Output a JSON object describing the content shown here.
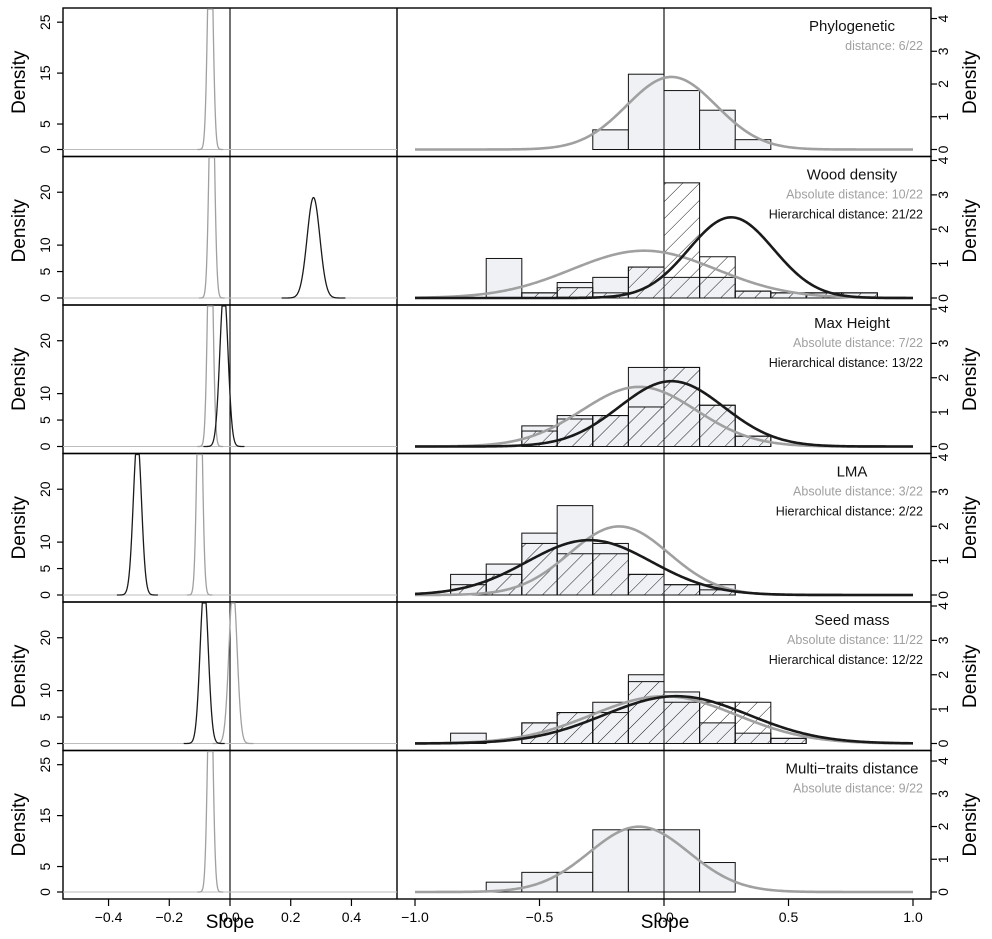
{
  "figure": {
    "left_xlabel": "Slope",
    "right_xlabel": "Slope",
    "ylabel_left": "Density",
    "ylabel_right": "Density"
  },
  "colors": {
    "absolute": "#a0a0a0",
    "hierarchical": "#1a1a1a",
    "hist_fill": "#eff1f5",
    "hist_edge": "#111111",
    "axis": "#000000"
  },
  "chart_data": {
    "type": "multi-panel density + histogram",
    "left_axis": {
      "xlim": [
        -0.55,
        0.55
      ],
      "xticks": [
        -0.4,
        -0.2,
        0.0,
        0.2,
        0.4
      ],
      "xtick_labels": [
        "−0.4",
        "−0.2",
        "0.0",
        "0.2",
        "0.4"
      ],
      "xlabel": "Slope"
    },
    "right_axis": {
      "xlim": [
        -1.0,
        1.0
      ],
      "xticks": [
        -1.0,
        -0.5,
        0.0,
        0.5,
        1.0
      ],
      "xtick_labels": [
        "−1.0",
        "−0.5",
        "0.0",
        "0.5",
        "1.0"
      ],
      "xlabel": "Slope"
    },
    "bin_edges": [
      -0.857,
      -0.714,
      -0.571,
      -0.429,
      -0.286,
      -0.143,
      0.0,
      0.143,
      0.286,
      0.429,
      0.571,
      0.714,
      0.857
    ],
    "panels": [
      {
        "title": "Phylogenetic",
        "legend": [
          {
            "text": "distance: 6/22",
            "series": "absolute"
          }
        ],
        "left_yticks": [
          0,
          5,
          15,
          25
        ],
        "left_ylim": [
          0,
          27
        ],
        "right_yticks": [
          0,
          1,
          2,
          3,
          4
        ],
        "right_ylim": [
          0,
          4.2
        ],
        "left_curves": [
          {
            "series": "absolute",
            "mean": -0.065,
            "sd": 0.0085
          }
        ],
        "right_curves": [
          {
            "series": "absolute",
            "mean": 0.03,
            "sd": 0.18
          }
        ],
        "hist_absolute": [
          0,
          0,
          0,
          0,
          0.6,
          2.3,
          1.8,
          1.2,
          0.3,
          0,
          0,
          0
        ],
        "hist_hierarchical": null
      },
      {
        "title": "Wood density",
        "legend": [
          {
            "text": "Absolute distance: 10/22",
            "series": "absolute"
          },
          {
            "text": "Hierarchical distance: 21/22",
            "series": "hierarchical"
          }
        ],
        "left_yticks": [
          0,
          5,
          10,
          20
        ],
        "left_ylim": [
          0,
          26
        ],
        "right_yticks": [
          0,
          1,
          2,
          3,
          4
        ],
        "right_ylim": [
          0,
          4.0
        ],
        "left_curves": [
          {
            "series": "absolute",
            "mean": -0.06,
            "sd": 0.0085
          },
          {
            "series": "hierarchical",
            "mean": 0.275,
            "sd": 0.021
          }
        ],
        "right_curves": [
          {
            "series": "absolute",
            "mean": -0.08,
            "sd": 0.29
          },
          {
            "series": "hierarchical",
            "mean": 0.27,
            "sd": 0.17
          }
        ],
        "hist_absolute": [
          0,
          1.15,
          0.15,
          0.45,
          0.6,
          0.9,
          0.6,
          0.6,
          0.2,
          0.15,
          0.15,
          0.15
        ],
        "hist_hierarchical": [
          0,
          0,
          0.15,
          0.3,
          0.15,
          0.9,
          3.35,
          1.2,
          0.2,
          0.15,
          0.15,
          0.15
        ]
      },
      {
        "title": "Max Height",
        "legend": [
          {
            "text": "Absolute distance: 7/22",
            "series": "absolute"
          },
          {
            "text": "Hierarchical distance: 13/22",
            "series": "hierarchical"
          }
        ],
        "left_yticks": [
          0,
          5,
          10,
          20
        ],
        "left_ylim": [
          0,
          26
        ],
        "right_yticks": [
          0,
          1,
          2,
          3,
          4
        ],
        "right_ylim": [
          0,
          4.0
        ],
        "left_curves": [
          {
            "series": "absolute",
            "mean": -0.065,
            "sd": 0.0085
          },
          {
            "series": "hierarchical",
            "mean": -0.02,
            "sd": 0.0135
          }
        ],
        "right_curves": [
          {
            "series": "absolute",
            "mean": -0.1,
            "sd": 0.23
          },
          {
            "series": "hierarchical",
            "mean": 0.03,
            "sd": 0.21
          }
        ],
        "hist_absolute": [
          0,
          0,
          0.6,
          0.9,
          0.9,
          2.3,
          2.3,
          1.2,
          0.3,
          0,
          0,
          0
        ],
        "hist_hierarchical": [
          0,
          0,
          0.45,
          0.8,
          0.9,
          1.15,
          2.3,
          1.2,
          0.3,
          0,
          0,
          0
        ]
      },
      {
        "title": "LMA",
        "legend": [
          {
            "text": "Absolute distance: 3/22",
            "series": "absolute"
          },
          {
            "text": "Hierarchical distance: 2/22",
            "series": "hierarchical"
          }
        ],
        "left_yticks": [
          0,
          5,
          10,
          20
        ],
        "left_ylim": [
          0,
          26
        ],
        "right_yticks": [
          0,
          1,
          2,
          3,
          4
        ],
        "right_ylim": [
          0,
          4.0
        ],
        "left_curves": [
          {
            "series": "absolute",
            "mean": -0.1,
            "sd": 0.0085
          },
          {
            "series": "hierarchical",
            "mean": -0.305,
            "sd": 0.0135
          }
        ],
        "right_curves": [
          {
            "series": "absolute",
            "mean": -0.18,
            "sd": 0.2
          },
          {
            "series": "hierarchical",
            "mean": -0.3,
            "sd": 0.25
          }
        ],
        "hist_absolute": [
          0.6,
          0.9,
          1.8,
          2.6,
          1.5,
          0.6,
          0.3,
          0.3,
          0,
          0,
          0,
          0
        ],
        "hist_hierarchical": [
          0.3,
          0.6,
          1.5,
          1.2,
          1.2,
          0.6,
          0.3,
          0.15,
          0,
          0,
          0,
          0
        ]
      },
      {
        "title": "Seed mass",
        "legend": [
          {
            "text": "Absolute distance: 11/22",
            "series": "absolute"
          },
          {
            "text": "Hierarchical distance: 12/22",
            "series": "hierarchical"
          }
        ],
        "left_yticks": [
          0,
          5,
          10,
          20
        ],
        "left_ylim": [
          0,
          26
        ],
        "right_yticks": [
          0,
          1,
          2,
          3,
          4
        ],
        "right_ylim": [
          0,
          4.0
        ],
        "left_curves": [
          {
            "series": "absolute",
            "mean": 0.01,
            "sd": 0.0135
          },
          {
            "series": "hierarchical",
            "mean": -0.085,
            "sd": 0.0135
          }
        ],
        "right_curves": [
          {
            "series": "absolute",
            "mean": 0.0,
            "sd": 0.29
          },
          {
            "series": "hierarchical",
            "mean": 0.05,
            "sd": 0.29
          }
        ],
        "hist_absolute": [
          0.3,
          0,
          0.6,
          0.9,
          1.2,
          2.0,
          1.5,
          0.6,
          0.3,
          0.15,
          0,
          0
        ],
        "hist_hierarchical": [
          0,
          0,
          0.6,
          0.9,
          0.9,
          1.8,
          1.2,
          1.2,
          1.2,
          0.15,
          0,
          0
        ]
      },
      {
        "title": "Multi−traits distance",
        "legend": [
          {
            "text": "Absolute distance: 9/22",
            "series": "absolute"
          }
        ],
        "left_yticks": [
          0,
          5,
          15,
          25
        ],
        "left_ylim": [
          0,
          27
        ],
        "right_yticks": [
          0,
          1,
          2,
          3,
          4
        ],
        "right_ylim": [
          0,
          4.2
        ],
        "left_curves": [
          {
            "series": "absolute",
            "mean": -0.065,
            "sd": 0.0085
          }
        ],
        "right_curves": [
          {
            "series": "absolute",
            "mean": -0.1,
            "sd": 0.2
          }
        ],
        "hist_absolute": [
          0,
          0.3,
          0.6,
          0.6,
          1.9,
          1.9,
          1.9,
          0.9,
          0,
          0,
          0,
          0
        ],
        "hist_hierarchical": null
      }
    ]
  }
}
